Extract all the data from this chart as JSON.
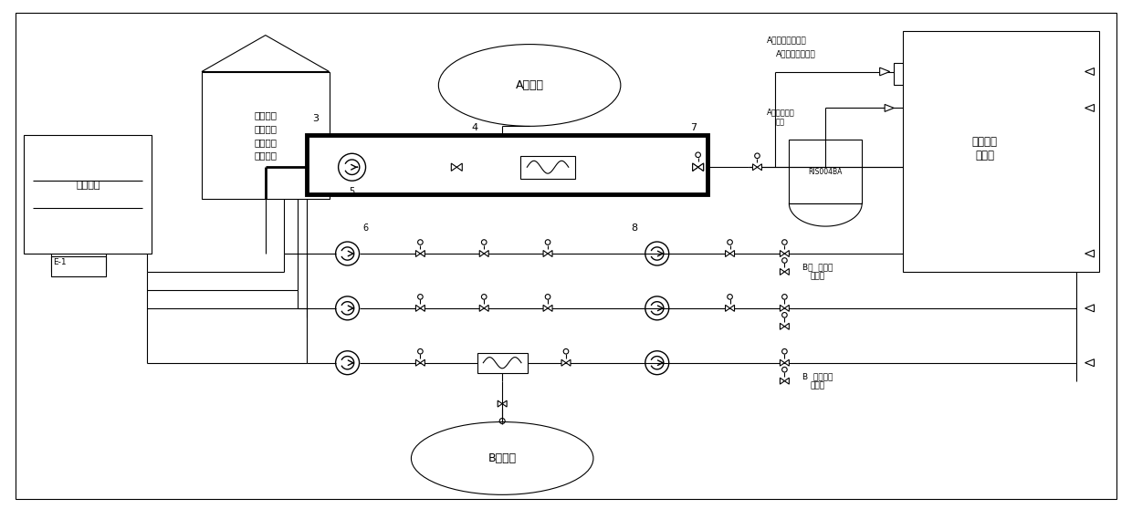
{
  "bg": "#ffffff",
  "lc": "#000000",
  "fig_w": 12.4,
  "fig_h": 5.58,
  "dpi": 100,
  "texts": {
    "tank": "反应堆和\n乏燃料水\n池冷却和\n处理水箱",
    "pit": "核岛地坑",
    "spray_a": "A列喷淋",
    "spray_b": "B列喷淋",
    "reactor": "反应堆压\n力容器",
    "ris": "RIS004BA",
    "n3": "3",
    "n4": "4",
    "n5": "5",
    "n6": "6",
    "n7": "7",
    "n8": "8",
    "a_low": "A列低压注入冷段",
    "a_high": "A列高压注入\n冷段",
    "b_high": "B列  高压注\n入冷段",
    "b_low": "B  列低压注\n入冷段",
    "e1": "E-1"
  }
}
